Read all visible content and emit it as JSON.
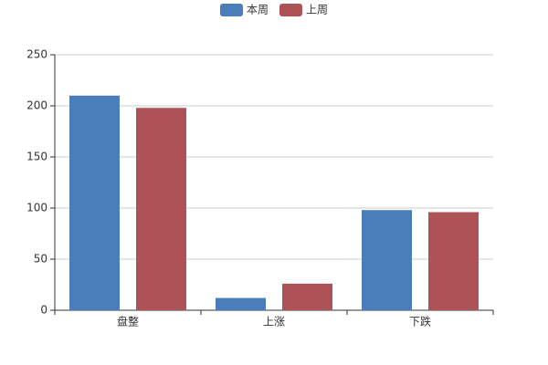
{
  "chart_data": {
    "type": "bar",
    "categories": [
      "盘整",
      "上涨",
      "下跌"
    ],
    "series": [
      {
        "name": "本周",
        "color": "#4a7ebb",
        "values": [
          210,
          12,
          98
        ]
      },
      {
        "name": "上周",
        "color": "#ad5257",
        "values": [
          198,
          26,
          96
        ]
      }
    ],
    "ylim": [
      0,
      250
    ],
    "yticks": [
      0,
      50,
      100,
      150,
      200,
      250
    ],
    "grid": true,
    "legend": "top"
  }
}
